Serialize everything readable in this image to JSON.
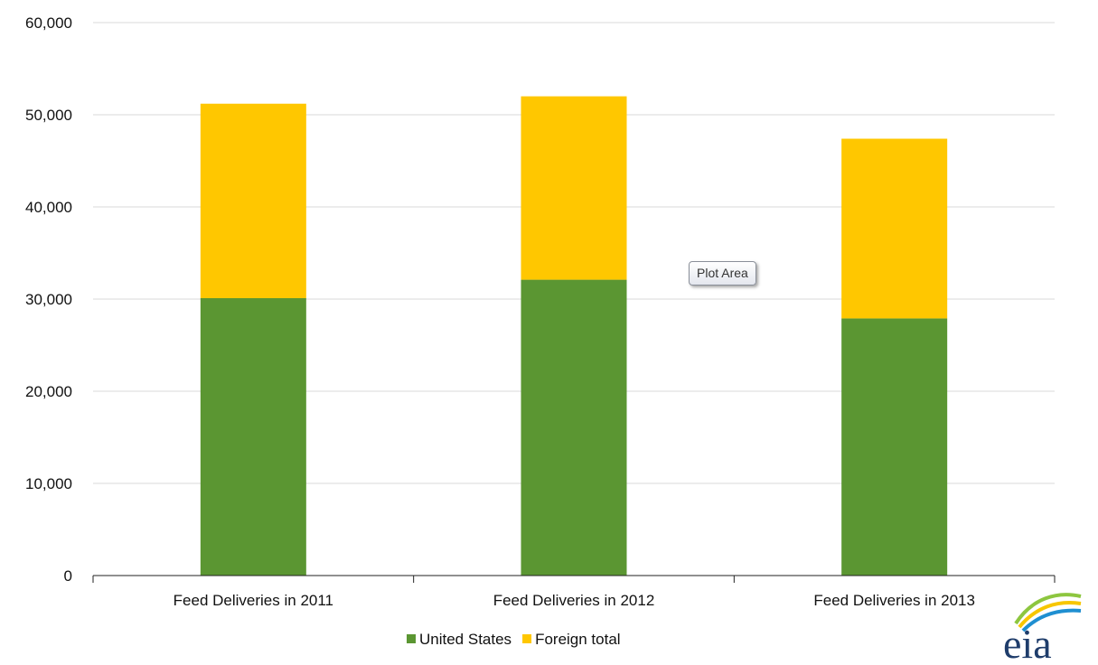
{
  "chart_data": {
    "type": "bar",
    "stacked": true,
    "categories": [
      "Feed Deliveries in 2011",
      "Feed Deliveries in 2012",
      "Feed Deliveries in 2013"
    ],
    "series": [
      {
        "name": "United States",
        "values": [
          30100,
          32100,
          27900
        ],
        "color": "#5b9632"
      },
      {
        "name": "Foreign total",
        "values": [
          21100,
          19900,
          19500
        ],
        "color": "#ffc700"
      }
    ],
    "ylim": [
      0,
      60000
    ],
    "yticks": [
      "0",
      "10,000",
      "20,000",
      "30,000",
      "40,000",
      "50,000",
      "60,000"
    ],
    "grid": true,
    "legend_position": "bottom"
  },
  "tooltip": {
    "label": "Plot Area"
  },
  "logo": {
    "text": "eia"
  },
  "colors": {
    "grid": "#d9d9d9",
    "axis": "#222222",
    "logo_blue": "#1f3d6b",
    "logo_green": "#8dc63f",
    "logo_yellow": "#f7c600"
  }
}
